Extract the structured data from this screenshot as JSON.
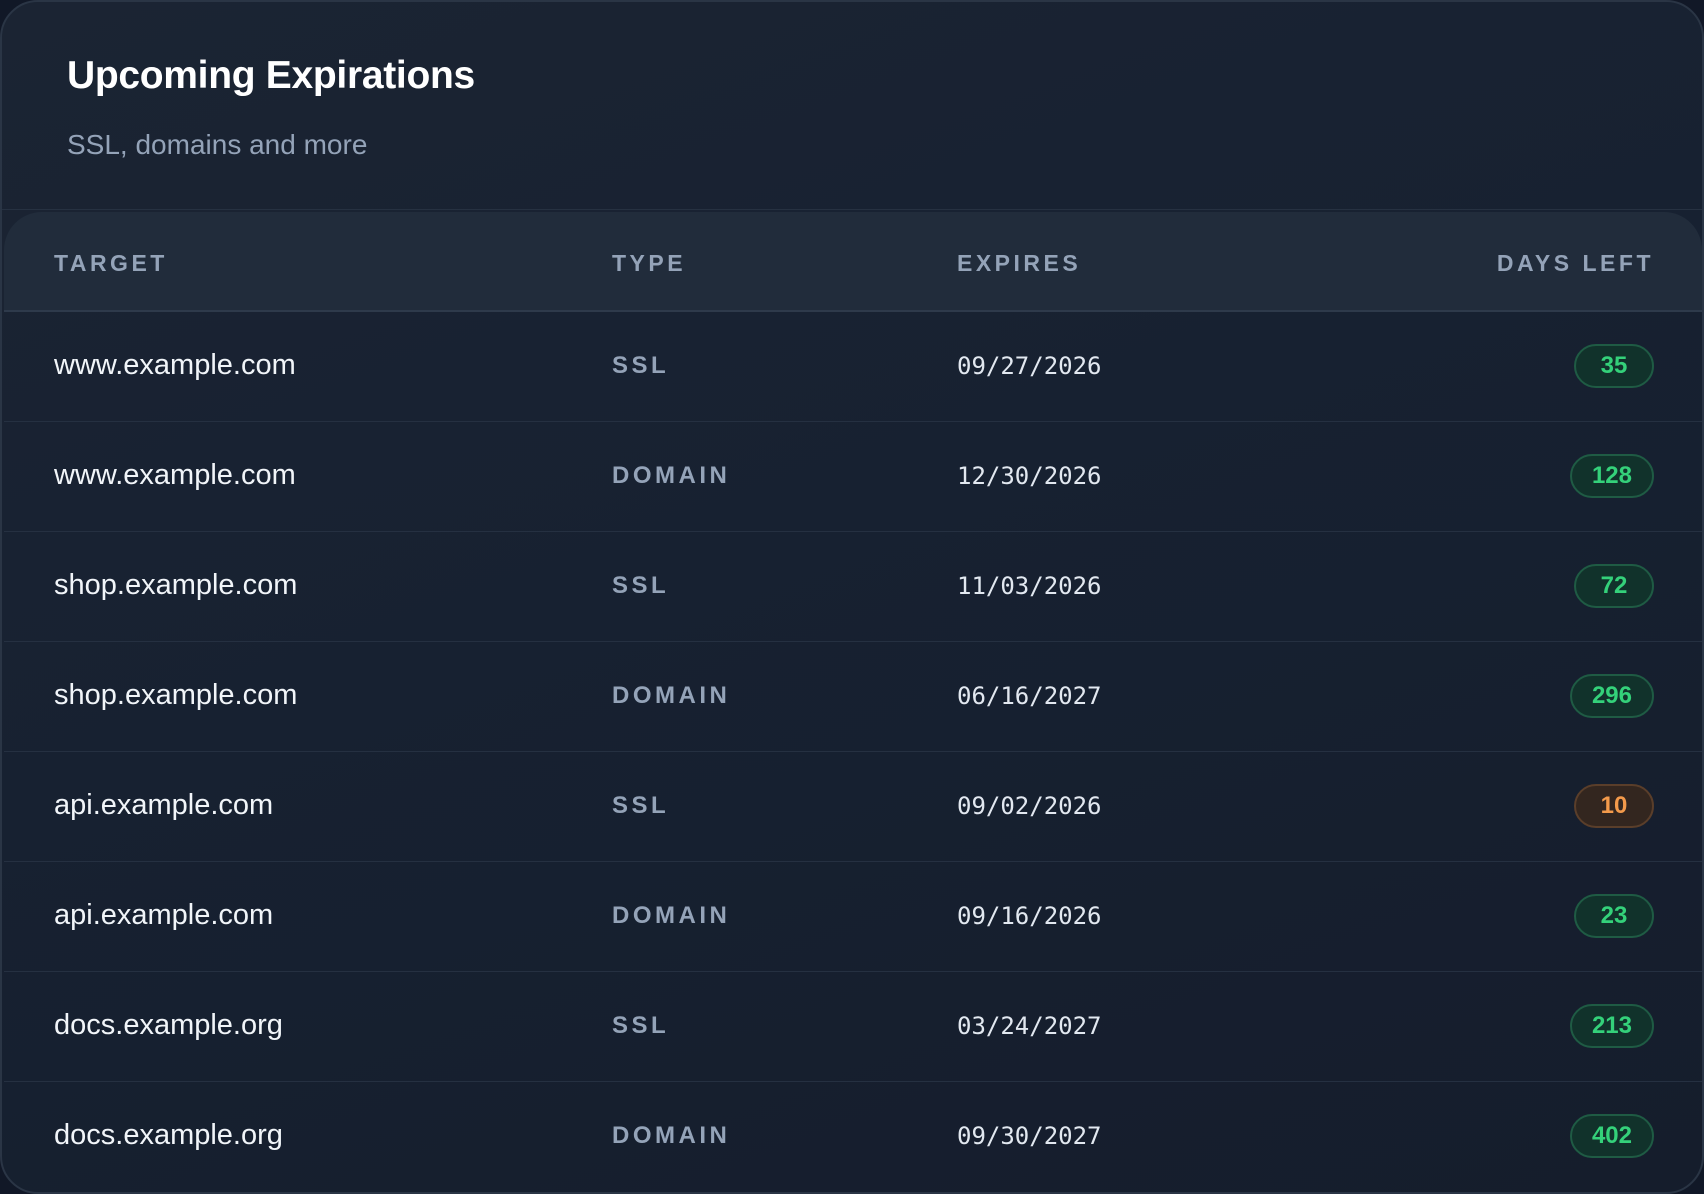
{
  "header": {
    "title": "Upcoming Expirations",
    "subtitle": "SSL, domains and more"
  },
  "table": {
    "columns": [
      "TARGET",
      "TYPE",
      "EXPIRES",
      "DAYS LEFT"
    ],
    "rows": [
      {
        "target": "www.example.com",
        "type": "SSL",
        "expires": "09/27/2026",
        "days_left": "35",
        "status": "ok"
      },
      {
        "target": "www.example.com",
        "type": "DOMAIN",
        "expires": "12/30/2026",
        "days_left": "128",
        "status": "ok"
      },
      {
        "target": "shop.example.com",
        "type": "SSL",
        "expires": "11/03/2026",
        "days_left": "72",
        "status": "ok"
      },
      {
        "target": "shop.example.com",
        "type": "DOMAIN",
        "expires": "06/16/2027",
        "days_left": "296",
        "status": "ok"
      },
      {
        "target": "api.example.com",
        "type": "SSL",
        "expires": "09/02/2026",
        "days_left": "10",
        "status": "warn"
      },
      {
        "target": "api.example.com",
        "type": "DOMAIN",
        "expires": "09/16/2026",
        "days_left": "23",
        "status": "ok"
      },
      {
        "target": "docs.example.org",
        "type": "SSL",
        "expires": "03/24/2027",
        "days_left": "213",
        "status": "ok"
      },
      {
        "target": "docs.example.org",
        "type": "DOMAIN",
        "expires": "09/30/2027",
        "days_left": "402",
        "status": "ok"
      }
    ]
  },
  "colors": {
    "ok": "#34d17a",
    "warn": "#f39a4b",
    "background": "#172131"
  }
}
